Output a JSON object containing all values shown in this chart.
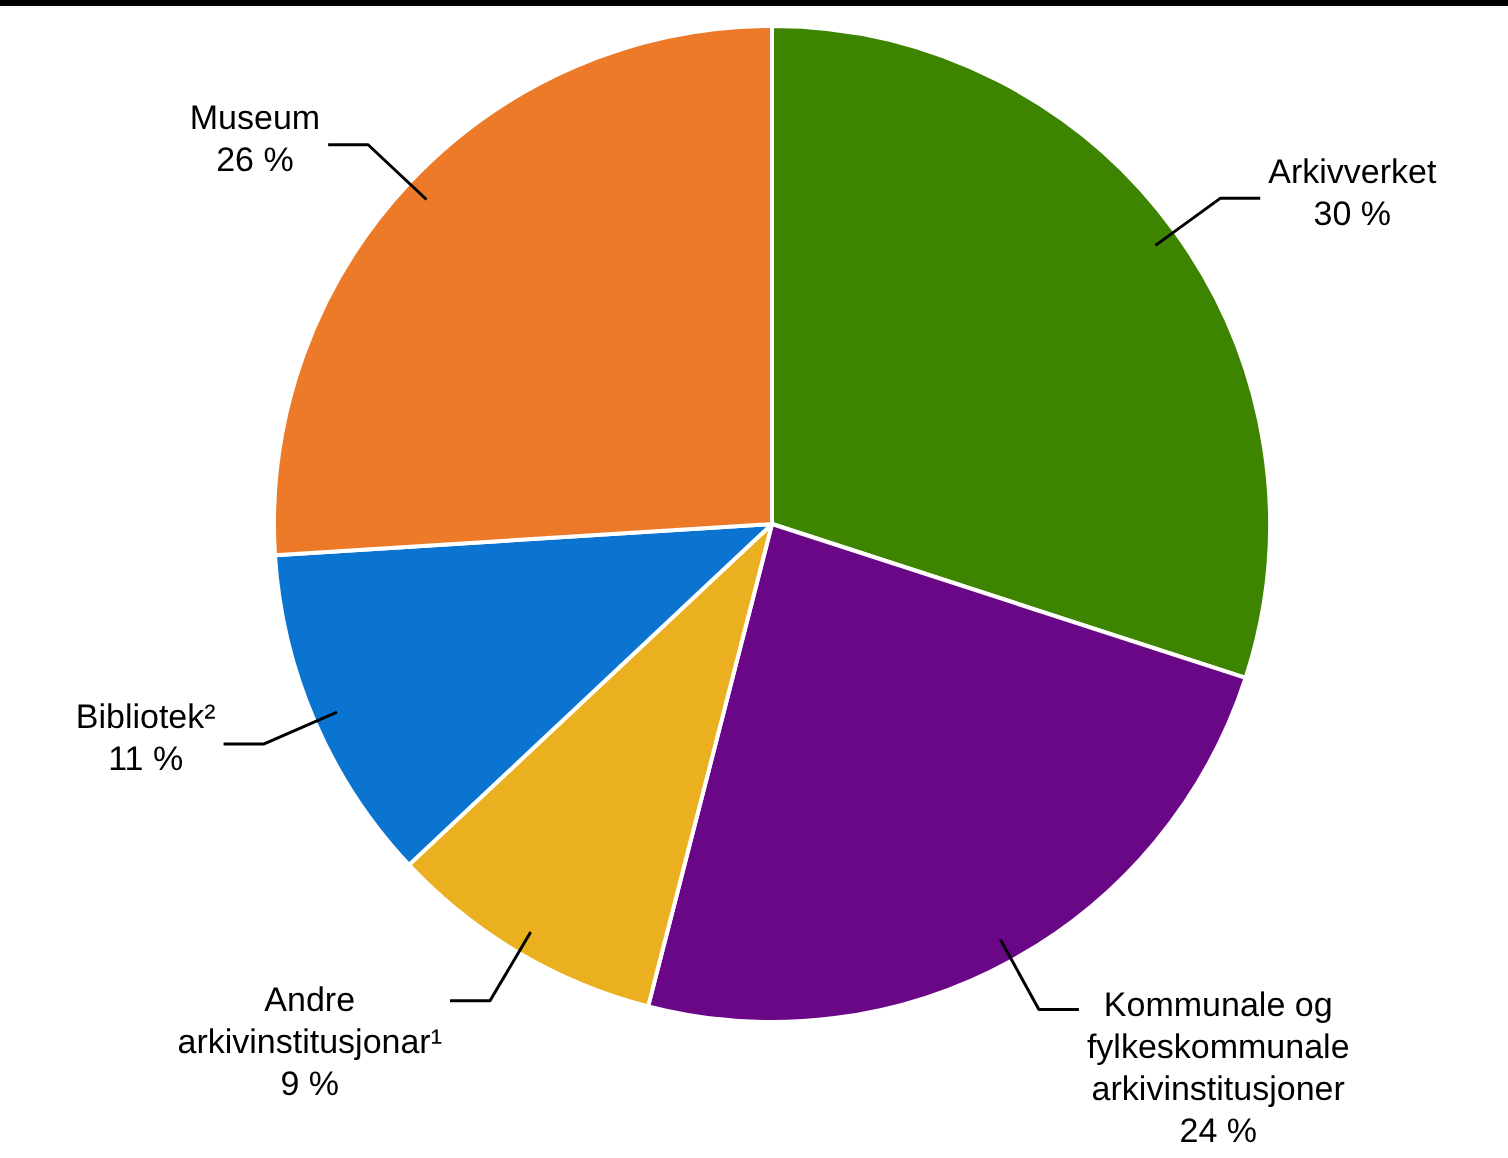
{
  "chart_data": {
    "type": "pie",
    "categories": [
      "Arkivverket",
      "Kommunale og fylkeskommunale arkivinstitusjoner",
      "Andre arkivinstitusjonar¹",
      "Bibliotek²",
      "Museum"
    ],
    "values": [
      30,
      24,
      9,
      11,
      26
    ],
    "value_labels": [
      "30 %",
      "24 %",
      "9 %",
      "11 %",
      "26 %"
    ],
    "colors": [
      "#3d8500",
      "#6a0787",
      "#eab020",
      "#0b74d0",
      "#ec7a28"
    ],
    "legend": false
  }
}
